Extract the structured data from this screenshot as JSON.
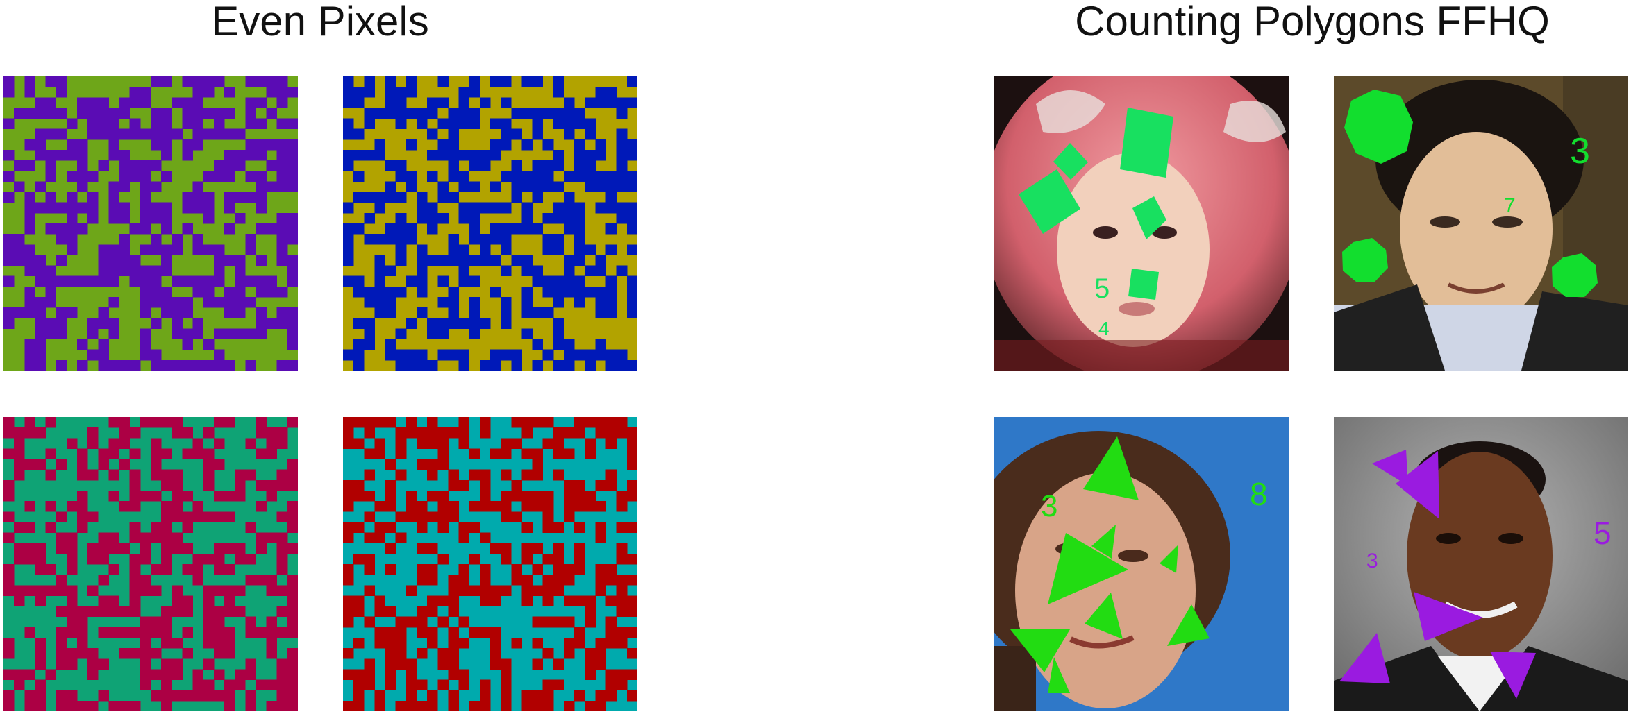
{
  "titles": {
    "left": "Even Pixels",
    "right": "Counting Polygons FFHQ"
  },
  "even_pixels": [
    {
      "id": "ep-1",
      "colors": [
        "#6ea619",
        "#5a0cb4"
      ]
    },
    {
      "id": "ep-2",
      "colors": [
        "#b2a300",
        "#0019b8"
      ]
    },
    {
      "id": "ep-3",
      "colors": [
        "#0fa375",
        "#ac0044"
      ]
    },
    {
      "id": "ep-4",
      "colors": [
        "#00aaad",
        "#b10000"
      ]
    }
  ],
  "faces": [
    {
      "id": "face-1",
      "background": [
        "#2a1a1a",
        "#d66a72",
        "#f0c8b0"
      ],
      "shape_color": "#18e060",
      "labels": [
        {
          "text": "5",
          "size": 40
        },
        {
          "text": "4",
          "size": 28
        }
      ]
    },
    {
      "id": "face-2",
      "background": [
        "#5a4a2c",
        "#e6c29a",
        "#4a3a2a"
      ],
      "shape_color": "#12de2e",
      "labels": [
        {
          "text": "3",
          "size": 52
        },
        {
          "text": "7",
          "size": 30
        }
      ]
    },
    {
      "id": "face-3",
      "background": [
        "#2e74c6",
        "#d2a084",
        "#3a2418"
      ],
      "shape_color": "#22dc12",
      "labels": [
        {
          "text": "3",
          "size": 44
        },
        {
          "text": "8",
          "size": 46
        }
      ]
    },
    {
      "id": "face-4",
      "background": [
        "#8a8a8a",
        "#5a3620",
        "#1a1a1a"
      ],
      "shape_color": "#9a1be0",
      "labels": [
        {
          "text": "5",
          "size": 46
        },
        {
          "text": "3",
          "size": 30
        }
      ]
    }
  ]
}
